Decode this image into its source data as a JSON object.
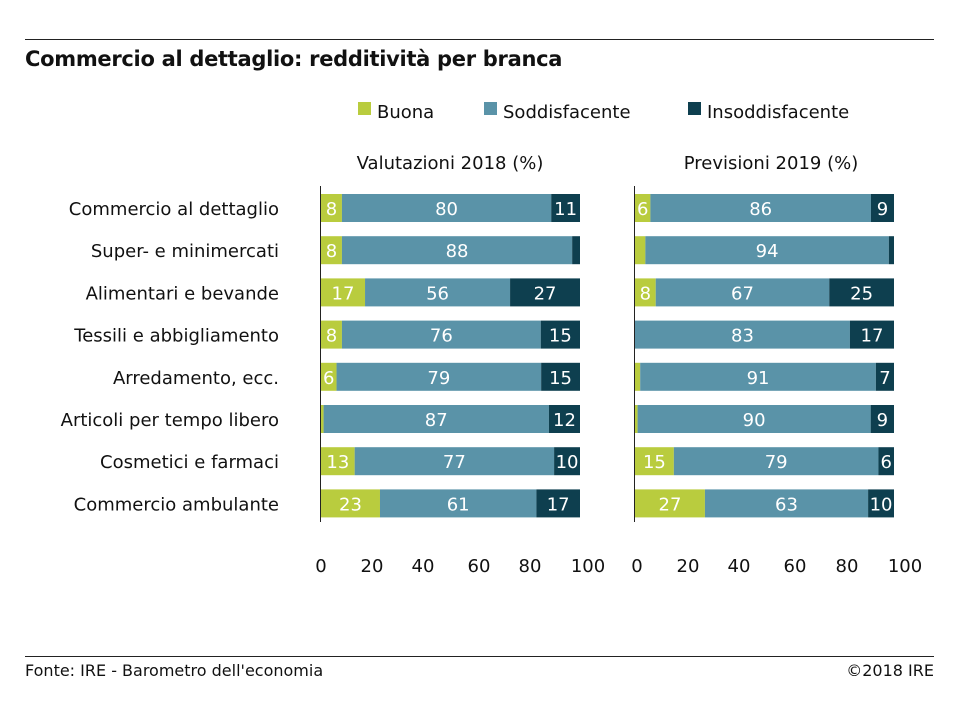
{
  "title": "Commercio al dettaglio: redditività per branca",
  "source": "Fonte: IRE - Barometro dell'economia",
  "copyright": "©2018 IRE",
  "chart_data": {
    "type": "bar",
    "orientation": "horizontal",
    "stacked": true,
    "legend": [
      "Buona",
      "Soddisfacente",
      "Insoddisfacente"
    ],
    "legend_position": "top",
    "colors": {
      "Buona": "#b9cc3e",
      "Soddisfacente": "#5a93a8",
      "Insoddisfacente": "#0e3f4f"
    },
    "categories": [
      "Commercio al dettaglio",
      "Super- e minimercati",
      "Alimentari e bevande",
      "Tessili e abbigliamento",
      "Arredamento, ecc.",
      "Articoli per tempo libero",
      "Cosmetici e farmaci",
      "Commercio ambulante"
    ],
    "xlim": [
      0,
      100
    ],
    "xticks": [
      "0",
      "20",
      "40",
      "60",
      "80",
      "100"
    ],
    "panels": [
      {
        "title": "Valutazioni 2018 (%)",
        "series": [
          {
            "name": "Buona",
            "values": [
              8,
              8,
              17,
              8,
              6,
              1,
              13,
              23
            ],
            "labels": [
              "8",
              "8",
              "17",
              "8",
              "6",
              "",
              "13",
              "23"
            ]
          },
          {
            "name": "Soddisfacente",
            "values": [
              80,
              88,
              56,
              76,
              79,
              87,
              77,
              61
            ],
            "labels": [
              "80",
              "88",
              "56",
              "76",
              "79",
              "87",
              "77",
              "61"
            ]
          },
          {
            "name": "Insoddisfacente",
            "values": [
              11,
              3,
              27,
              15,
              15,
              12,
              10,
              17
            ],
            "labels": [
              "11",
              "",
              "27",
              "15",
              "15",
              "12",
              "10",
              "17"
            ]
          }
        ]
      },
      {
        "title": "Previsioni 2019 (%)",
        "series": [
          {
            "name": "Buona",
            "values": [
              6,
              4,
              8,
              0,
              2,
              1,
              15,
              27
            ],
            "labels": [
              "6",
              "",
              "8",
              "",
              "",
              "",
              "15",
              "27"
            ]
          },
          {
            "name": "Soddisfacente",
            "values": [
              86,
              94,
              67,
              83,
              91,
              90,
              79,
              63
            ],
            "labels": [
              "86",
              "94",
              "67",
              "83",
              "91",
              "90",
              "79",
              "63"
            ]
          },
          {
            "name": "Insoddisfacente",
            "values": [
              9,
              2,
              25,
              17,
              7,
              9,
              6,
              10
            ],
            "labels": [
              "9",
              "",
              "25",
              "17",
              "7",
              "9",
              "6",
              "10"
            ]
          }
        ]
      }
    ]
  }
}
